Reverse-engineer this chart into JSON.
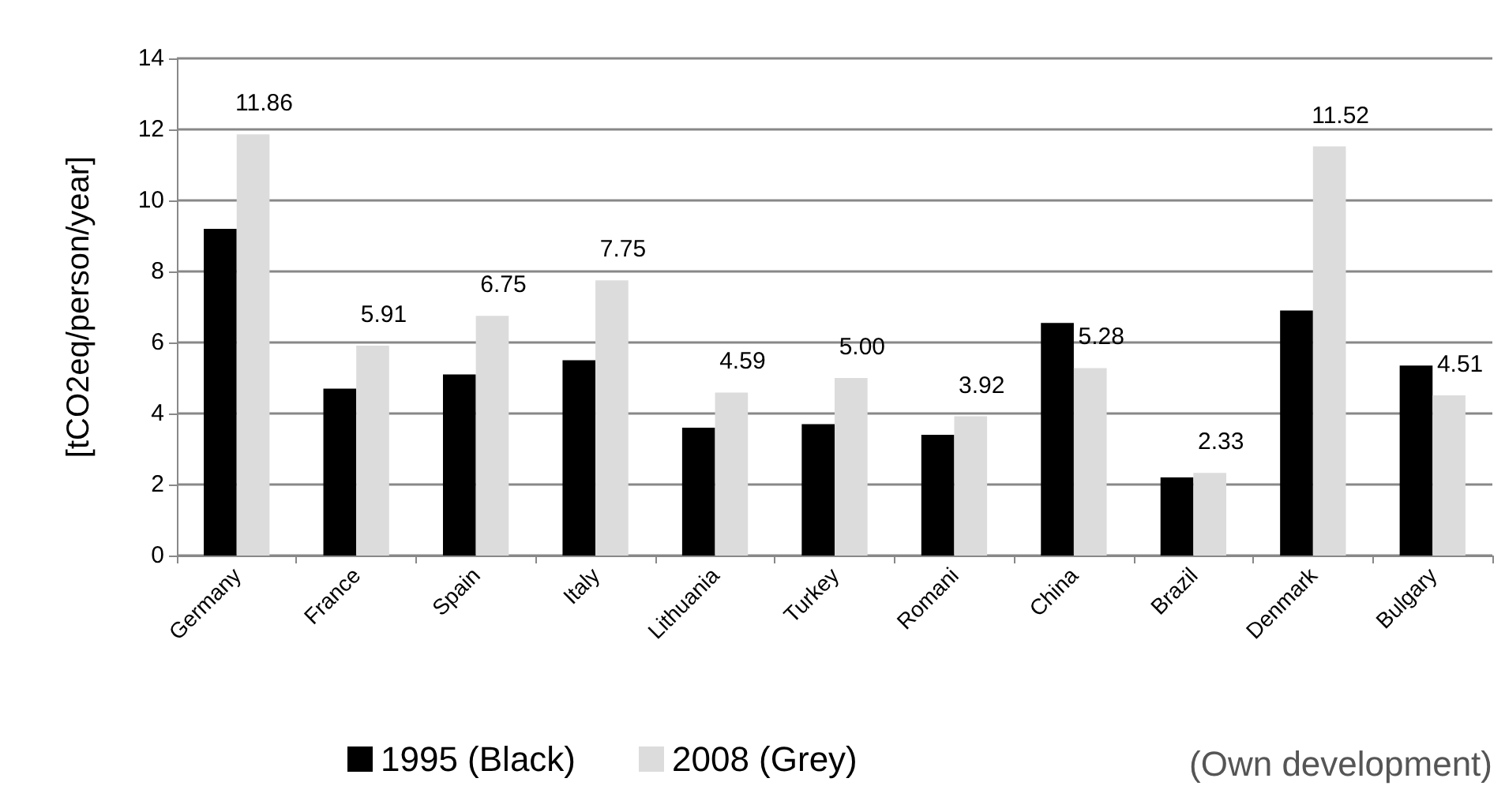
{
  "chart_data": {
    "type": "bar",
    "ylabel": "[tCO2eq/person/year]",
    "categories": [
      "Germany",
      "France",
      "Spain",
      "Italy",
      "Lithuania",
      "Turkey",
      "Romani",
      "China",
      "Brazil",
      "Denmark",
      "Bulgary"
    ],
    "series": [
      {
        "name": "1995 (Black)",
        "color": "#000000",
        "values": [
          9.2,
          4.7,
          5.1,
          5.5,
          3.6,
          3.7,
          3.4,
          6.55,
          2.2,
          6.9,
          5.35
        ]
      },
      {
        "name": "2008 (Grey)",
        "color": "#dcdcdc",
        "values": [
          11.86,
          5.91,
          6.75,
          7.75,
          4.59,
          5.0,
          3.92,
          5.28,
          2.33,
          11.52,
          4.51
        ],
        "value_labels": [
          "11.86",
          "5.91",
          "6.75",
          "7.75",
          "4.59",
          "5.00",
          "3.92",
          "5.28",
          "2.33",
          "11.52",
          "4.51"
        ]
      }
    ],
    "ylim": [
      0,
      14
    ],
    "yticks": [
      0,
      2,
      4,
      6,
      8,
      10,
      12,
      14
    ],
    "grid": "y",
    "legend": "bottom",
    "annotations": [
      "(Own development)"
    ]
  }
}
